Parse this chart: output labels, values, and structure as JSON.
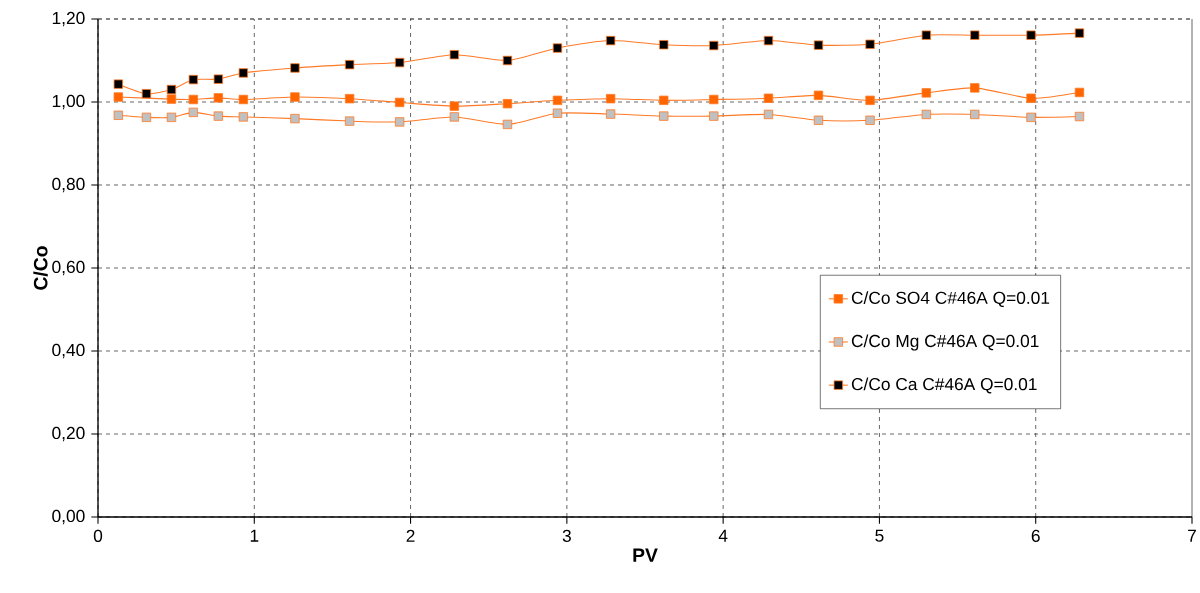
{
  "chart_data": {
    "type": "line",
    "xlabel": "PV",
    "ylabel": "C/Co",
    "x": [
      0.13,
      0.31,
      0.47,
      0.61,
      0.77,
      0.93,
      1.26,
      1.61,
      1.93,
      2.28,
      2.62,
      2.94,
      3.28,
      3.62,
      3.94,
      4.29,
      4.61,
      4.94,
      5.3,
      5.61,
      5.97,
      6.28
    ],
    "series": [
      {
        "name": "C/Co SO4 C#46A Q=0.01",
        "color": "#ff6600",
        "values": [
          1.012,
          null,
          1.007,
          1.006,
          1.01,
          1.006,
          1.012,
          1.008,
          0.999,
          0.99,
          0.996,
          1.004,
          1.008,
          1.004,
          1.006,
          1.009,
          1.016,
          1.004,
          1.022,
          1.034,
          1.009,
          1.023
        ]
      },
      {
        "name": "C/Co Mg C#46A Q=0.01",
        "color": "#c0c0c0",
        "values": [
          0.968,
          0.963,
          0.963,
          0.975,
          0.966,
          0.964,
          0.96,
          0.954,
          0.952,
          0.964,
          0.946,
          0.973,
          0.971,
          0.966,
          0.966,
          0.97,
          0.956,
          0.956,
          0.97,
          0.97,
          0.963,
          0.965
        ]
      },
      {
        "name": "C/Co Ca C#46A Q=0.01",
        "color": "#000000",
        "values": [
          1.043,
          1.02,
          1.03,
          1.054,
          1.055,
          1.07,
          1.082,
          1.09,
          1.095,
          1.114,
          1.1,
          1.13,
          1.148,
          1.138,
          1.136,
          1.148,
          1.137,
          1.139,
          1.161,
          1.161,
          1.161,
          1.166
        ]
      }
    ],
    "xlim": [
      0,
      7
    ],
    "ylim": [
      0,
      1.2
    ],
    "xticks": [
      0,
      1,
      2,
      3,
      4,
      5,
      6,
      7
    ],
    "yticks": [
      {
        "value": 0,
        "label": "0,00"
      },
      {
        "value": 0.2,
        "label": "0,20"
      },
      {
        "value": 0.4,
        "label": "0,40"
      },
      {
        "value": 0.6,
        "label": "0,60"
      },
      {
        "value": 0.8,
        "label": "0,80"
      },
      {
        "value": 1.0,
        "label": "1,00"
      },
      {
        "value": 1.2,
        "label": "1,20"
      }
    ],
    "grid": true,
    "legend": "right",
    "marker": "square",
    "line_style": "solid"
  }
}
